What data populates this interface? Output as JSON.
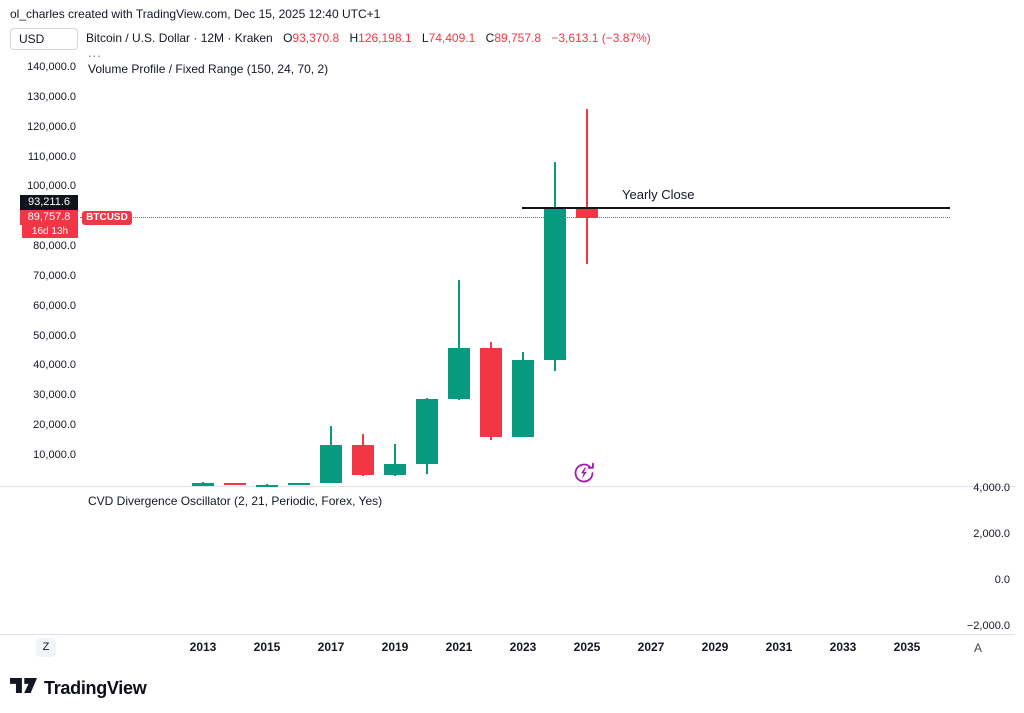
{
  "attribution": "ol_charles created with TradingView.com, Dec 15, 2025 12:40 UTC+1",
  "toolbar": {
    "currency": "USD"
  },
  "legend": {
    "symbol_title": "Bitcoin / U.S. Dollar · 12M · Kraken",
    "ohlc": [
      {
        "key": "O",
        "value": "93,370.8"
      },
      {
        "key": "H",
        "value": "126,198.1"
      },
      {
        "key": "L",
        "value": "74,409.1"
      },
      {
        "key": "C",
        "value": "89,757.8"
      }
    ],
    "change": "−3,613.1 (−3.87%)",
    "overflow": "...",
    "indicator_volume_profile": "Volume Profile / Fixed Range (150, 24, 70, 2)"
  },
  "price_tags": {
    "yearly_close": {
      "text": "93,211.6",
      "value": 93211.6
    },
    "last": {
      "text": "89,757.8",
      "value": 89757.8
    },
    "symbol_pill": "BTCUSD",
    "countdown": "16d 13h"
  },
  "chart_data": {
    "type": "candlestick",
    "title": "Bitcoin / U.S. Dollar · 12M · Kraken",
    "colors": {
      "up": "#089981",
      "down": "#F23645"
    },
    "y_axis": {
      "side": "left",
      "min": 0,
      "max": 144000,
      "ticks": [
        {
          "label": "140,000.0",
          "value": 140000
        },
        {
          "label": "130,000.0",
          "value": 130000
        },
        {
          "label": "120,000.0",
          "value": 120000
        },
        {
          "label": "110,000.0",
          "value": 110000
        },
        {
          "label": "100,000.0",
          "value": 100000
        },
        {
          "label": "80,000.0",
          "value": 80000
        },
        {
          "label": "70,000.0",
          "value": 70000
        },
        {
          "label": "60,000.0",
          "value": 60000
        },
        {
          "label": "50,000.0",
          "value": 50000
        },
        {
          "label": "40,000.0",
          "value": 40000
        },
        {
          "label": "30,000.0",
          "value": 30000
        },
        {
          "label": "20,000.0",
          "value": 20000
        },
        {
          "label": "10,000.0",
          "value": 10000
        }
      ]
    },
    "x_axis": {
      "ticks": [
        "2013",
        "2015",
        "2017",
        "2019",
        "2021",
        "2023",
        "2025",
        "2027",
        "2029",
        "2031",
        "2033",
        "2035"
      ]
    },
    "candles": [
      {
        "year": 2013,
        "open": 13.5,
        "high": 1163,
        "low": 13,
        "close": 806
      },
      {
        "year": 2014,
        "open": 806,
        "high": 951,
        "low": 309,
        "close": 318
      },
      {
        "year": 2015,
        "open": 318,
        "high": 495,
        "low": 157,
        "close": 430
      },
      {
        "year": 2016,
        "open": 430,
        "high": 982,
        "low": 350,
        "close": 963
      },
      {
        "year": 2017,
        "open": 963,
        "high": 19891,
        "low": 784,
        "close": 13850
      },
      {
        "year": 2018,
        "open": 13850,
        "high": 17234,
        "low": 3157,
        "close": 3690
      },
      {
        "year": 2019,
        "open": 3690,
        "high": 13880,
        "low": 3350,
        "close": 7180
      },
      {
        "year": 2020,
        "open": 7180,
        "high": 29300,
        "low": 3850,
        "close": 28990
      },
      {
        "year": 2021,
        "open": 28990,
        "high": 69000,
        "low": 28800,
        "close": 46210
      },
      {
        "year": 2022,
        "open": 46210,
        "high": 48200,
        "low": 15480,
        "close": 16530
      },
      {
        "year": 2023,
        "open": 16530,
        "high": 44700,
        "low": 16499,
        "close": 42280
      },
      {
        "year": 2024,
        "open": 42280,
        "high": 108368,
        "low": 38550,
        "close": 93400
      },
      {
        "year": 2025,
        "open": 93370.8,
        "high": 126198.1,
        "low": 74409.1,
        "close": 89757.8
      }
    ],
    "annotations": {
      "yearly_close_line": {
        "label": "Yearly Close",
        "value": 93211.6,
        "color": "#131722",
        "style": "solid"
      },
      "last_price_line": {
        "value": 89757.8,
        "color": "#F23645",
        "style": "dotted"
      }
    }
  },
  "oscillator": {
    "title": "CVD Divergence Oscillator (2, 21, Periodic, Forex, Yes)",
    "y_axis": {
      "side": "right",
      "ticks": [
        {
          "label": "4,000.0",
          "value": 4000
        },
        {
          "label": "2,000.0",
          "value": 2000
        },
        {
          "label": "0.0",
          "value": 0
        },
        {
          "label": "−2,000.0",
          "value": -2000
        }
      ]
    }
  },
  "time_axis_buttons": {
    "left": "Z",
    "right": "A"
  },
  "ai_marker": {
    "icon": "refresh-bolt-icon",
    "color": "#A21CAF"
  },
  "footer": {
    "brand": "TradingView"
  }
}
